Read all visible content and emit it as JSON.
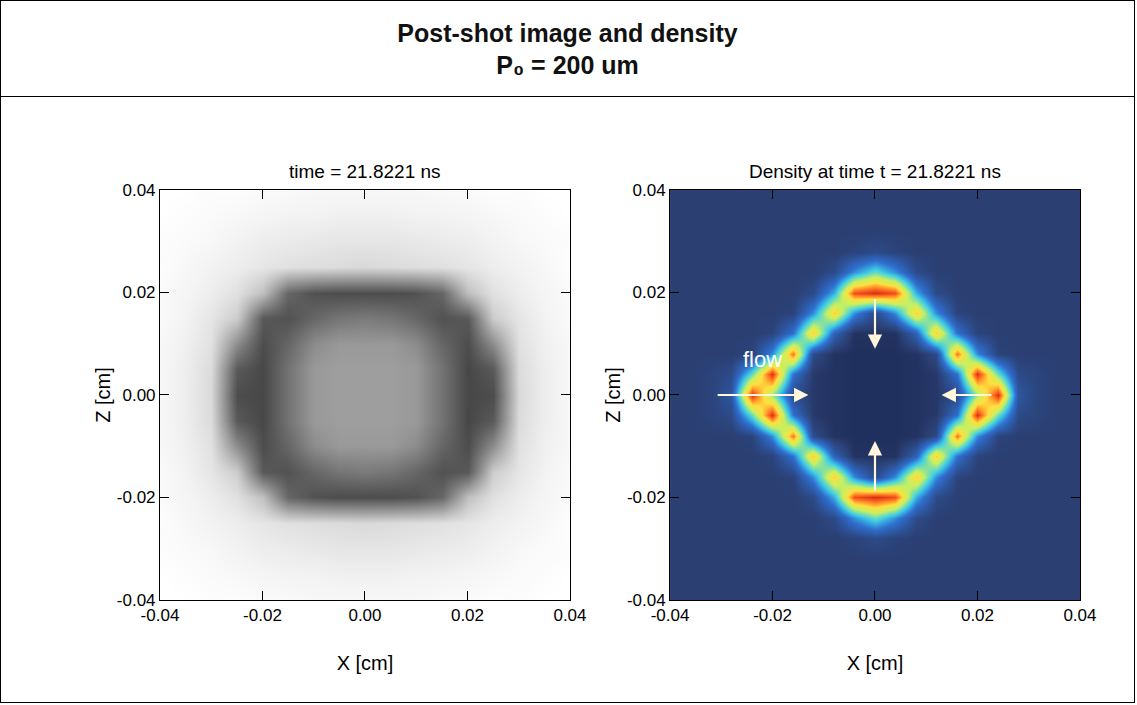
{
  "title": [
    "Post-shot image and density",
    "P₀ = 200 um"
  ],
  "chart_data": [
    {
      "type": "heatmap",
      "title": "time = 21.8221 ns",
      "x_label": "X [cm]",
      "y_label": "Z [cm]",
      "color": "gray",
      "grid": false,
      "zlim": [
        0,
        1
      ],
      "xlim": [
        -0.04,
        0.04
      ],
      "ylim": [
        -0.04,
        0.04
      ],
      "xticks": [
        -0.04,
        -0.02,
        {
          "value": 0,
          "label": "0.00"
        },
        0.02,
        0.04
      ],
      "yticks": [
        -0.04,
        -0.02,
        {
          "value": 0,
          "label": "0.00"
        },
        0.02,
        0.04
      ],
      "x": [
        -0.04,
        -0.035,
        -0.03,
        -0.025,
        -0.02,
        -0.015,
        -0.01,
        -0.005,
        0,
        0.005,
        0.01,
        0.015,
        0.02,
        0.025,
        0.03,
        0.035,
        0.04
      ],
      "y": [
        -0.04,
        -0.035,
        -0.03,
        -0.025,
        -0.02,
        -0.015,
        -0.01,
        -0.005,
        0,
        0.005,
        0.01,
        0.015,
        0.02,
        0.025,
        0.03,
        0.035,
        0.04
      ],
      "z": [
        [
          1,
          1,
          0.99,
          0.99,
          0.98,
          0.98,
          0.97,
          0.97,
          0.97,
          0.97,
          0.97,
          0.98,
          0.98,
          0.99,
          0.99,
          1,
          1
        ],
        [
          1,
          0.99,
          0.98,
          0.97,
          0.96,
          0.95,
          0.95,
          0.94,
          0.94,
          0.94,
          0.95,
          0.95,
          0.96,
          0.97,
          0.98,
          0.99,
          1
        ],
        [
          0.99,
          0.98,
          0.97,
          0.95,
          0.93,
          0.92,
          0.91,
          0.9,
          0.9,
          0.9,
          0.91,
          0.92,
          0.93,
          0.95,
          0.97,
          0.98,
          0.99
        ],
        [
          0.99,
          0.97,
          0.95,
          0.93,
          0.9,
          0.88,
          0.87,
          0.86,
          0.85,
          0.86,
          0.87,
          0.88,
          0.9,
          0.93,
          0.95,
          0.97,
          0.99
        ],
        [
          0.98,
          0.96,
          0.93,
          0.88,
          0.75,
          0.4,
          0.32,
          0.3,
          0.3,
          0.3,
          0.32,
          0.4,
          0.75,
          0.88,
          0.93,
          0.96,
          0.98
        ],
        [
          0.98,
          0.95,
          0.9,
          0.8,
          0.35,
          0.32,
          0.4,
          0.46,
          0.48,
          0.46,
          0.4,
          0.32,
          0.35,
          0.8,
          0.9,
          0.95,
          0.98
        ],
        [
          0.97,
          0.94,
          0.88,
          0.55,
          0.3,
          0.4,
          0.55,
          0.6,
          0.6,
          0.6,
          0.55,
          0.4,
          0.3,
          0.55,
          0.88,
          0.94,
          0.97
        ],
        [
          0.97,
          0.93,
          0.86,
          0.35,
          0.28,
          0.45,
          0.6,
          0.62,
          0.62,
          0.62,
          0.6,
          0.45,
          0.28,
          0.35,
          0.86,
          0.93,
          0.97
        ],
        [
          0.97,
          0.93,
          0.85,
          0.3,
          0.28,
          0.45,
          0.6,
          0.62,
          0.62,
          0.62,
          0.6,
          0.45,
          0.28,
          0.3,
          0.85,
          0.93,
          0.97
        ],
        [
          0.97,
          0.93,
          0.86,
          0.35,
          0.28,
          0.45,
          0.6,
          0.62,
          0.62,
          0.62,
          0.6,
          0.45,
          0.28,
          0.35,
          0.86,
          0.93,
          0.97
        ],
        [
          0.97,
          0.94,
          0.88,
          0.55,
          0.3,
          0.4,
          0.55,
          0.6,
          0.6,
          0.6,
          0.55,
          0.4,
          0.3,
          0.55,
          0.88,
          0.94,
          0.97
        ],
        [
          0.98,
          0.95,
          0.9,
          0.8,
          0.35,
          0.32,
          0.4,
          0.46,
          0.48,
          0.46,
          0.4,
          0.32,
          0.35,
          0.8,
          0.9,
          0.95,
          0.98
        ],
        [
          0.98,
          0.96,
          0.93,
          0.88,
          0.75,
          0.4,
          0.32,
          0.3,
          0.3,
          0.3,
          0.32,
          0.4,
          0.75,
          0.88,
          0.93,
          0.96,
          0.98
        ],
        [
          0.99,
          0.97,
          0.95,
          0.93,
          0.9,
          0.88,
          0.87,
          0.86,
          0.85,
          0.86,
          0.87,
          0.88,
          0.9,
          0.93,
          0.95,
          0.97,
          0.99
        ],
        [
          0.99,
          0.98,
          0.97,
          0.95,
          0.93,
          0.92,
          0.91,
          0.9,
          0.9,
          0.9,
          0.91,
          0.92,
          0.93,
          0.95,
          0.97,
          0.98,
          0.99
        ],
        [
          1,
          0.99,
          0.98,
          0.97,
          0.96,
          0.95,
          0.95,
          0.94,
          0.94,
          0.94,
          0.95,
          0.95,
          0.96,
          0.97,
          0.98,
          0.99,
          1
        ],
        [
          1,
          1,
          0.99,
          0.99,
          0.98,
          0.98,
          0.97,
          0.97,
          0.97,
          0.97,
          0.97,
          0.98,
          0.98,
          0.99,
          0.99,
          1,
          1
        ]
      ]
    },
    {
      "type": "heatmap",
      "title": "Density at time t = 21.8221 ns",
      "x_label": "X [cm]",
      "y_label": "Z [cm]",
      "color": "jet",
      "grid": false,
      "zlim": [
        0,
        1
      ],
      "annotations": [
        "flow"
      ],
      "xlim": [
        -0.04,
        0.04
      ],
      "ylim": [
        -0.04,
        0.04
      ],
      "xticks": [
        -0.04,
        -0.02,
        {
          "value": 0,
          "label": "0.00"
        },
        0.02,
        0.04
      ],
      "yticks": [
        -0.04,
        -0.02,
        {
          "value": 0,
          "label": "0.00"
        },
        0.02,
        0.04
      ],
      "x": [
        -0.04,
        -0.036,
        -0.032,
        -0.028,
        -0.024,
        -0.02,
        -0.016,
        -0.012,
        -0.008,
        -0.004,
        0,
        0.004,
        0.008,
        0.012,
        0.016,
        0.02,
        0.024,
        0.028,
        0.032,
        0.036,
        0.04
      ],
      "y": [
        -0.04,
        -0.036,
        -0.032,
        -0.028,
        -0.024,
        -0.02,
        -0.016,
        -0.012,
        -0.008,
        -0.004,
        0,
        0.004,
        0.008,
        0.012,
        0.016,
        0.02,
        0.024,
        0.028,
        0.032,
        0.036,
        0.04
      ],
      "z": [
        [
          0.1,
          0.1,
          0.1,
          0.1,
          0.1,
          0.1,
          0.1,
          0.1,
          0.1,
          0.1,
          0.1,
          0.1,
          0.1,
          0.1,
          0.1,
          0.1,
          0.1,
          0.1,
          0.1,
          0.1,
          0.1
        ],
        [
          0.1,
          0.1,
          0.1,
          0.1,
          0.1,
          0.1,
          0.1,
          0.1,
          0.1,
          0.1,
          0.1,
          0.1,
          0.1,
          0.1,
          0.1,
          0.1,
          0.1,
          0.1,
          0.1,
          0.1,
          0.1
        ],
        [
          0.1,
          0.1,
          0.1,
          0.1,
          0.1,
          0.1,
          0.1,
          0.1,
          0.1,
          0.1,
          0.1,
          0.1,
          0.1,
          0.1,
          0.1,
          0.1,
          0.1,
          0.1,
          0.1,
          0.1,
          0.1
        ],
        [
          0.1,
          0.1,
          0.1,
          0.1,
          0.1,
          0.1,
          0.1,
          0.1,
          0.1,
          0.12,
          0.15,
          0.12,
          0.1,
          0.1,
          0.1,
          0.1,
          0.1,
          0.1,
          0.1,
          0.1,
          0.1
        ],
        [
          0.1,
          0.1,
          0.1,
          0.1,
          0.1,
          0.1,
          0.1,
          0.1,
          0.15,
          0.35,
          0.5,
          0.35,
          0.15,
          0.1,
          0.1,
          0.1,
          0.1,
          0.1,
          0.1,
          0.1,
          0.1
        ],
        [
          0.1,
          0.1,
          0.1,
          0.1,
          0.1,
          0.1,
          0.1,
          0.15,
          0.4,
          0.9,
          0.95,
          0.9,
          0.4,
          0.15,
          0.1,
          0.1,
          0.1,
          0.1,
          0.1,
          0.1,
          0.1
        ],
        [
          0.1,
          0.1,
          0.1,
          0.1,
          0.1,
          0.1,
          0.12,
          0.35,
          0.75,
          0.35,
          0.15,
          0.35,
          0.75,
          0.35,
          0.12,
          0.1,
          0.1,
          0.1,
          0.1,
          0.1,
          0.1
        ],
        [
          0.1,
          0.1,
          0.1,
          0.1,
          0.1,
          0.12,
          0.3,
          0.75,
          0.25,
          0.06,
          0.06,
          0.06,
          0.25,
          0.75,
          0.3,
          0.12,
          0.1,
          0.1,
          0.1,
          0.1,
          0.1
        ],
        [
          0.1,
          0.1,
          0.1,
          0.1,
          0.12,
          0.35,
          0.85,
          0.15,
          0.06,
          0.05,
          0.05,
          0.05,
          0.06,
          0.15,
          0.85,
          0.35,
          0.12,
          0.1,
          0.1,
          0.1,
          0.1
        ],
        [
          0.1,
          0.1,
          0.12,
          0.15,
          0.5,
          0.95,
          0.3,
          0.08,
          0.06,
          0.05,
          0.05,
          0.05,
          0.06,
          0.08,
          0.3,
          0.95,
          0.5,
          0.15,
          0.12,
          0.1,
          0.1
        ],
        [
          0.1,
          0.1,
          0.12,
          0.2,
          0.95,
          0.55,
          0.15,
          0.08,
          0.06,
          0.05,
          0.05,
          0.05,
          0.06,
          0.08,
          0.15,
          0.55,
          0.95,
          0.2,
          0.12,
          0.1,
          0.1
        ],
        [
          0.1,
          0.1,
          0.12,
          0.15,
          0.5,
          0.95,
          0.3,
          0.08,
          0.06,
          0.05,
          0.05,
          0.05,
          0.06,
          0.08,
          0.3,
          0.95,
          0.5,
          0.15,
          0.12,
          0.1,
          0.1
        ],
        [
          0.1,
          0.1,
          0.1,
          0.1,
          0.12,
          0.35,
          0.85,
          0.15,
          0.06,
          0.05,
          0.05,
          0.05,
          0.06,
          0.15,
          0.85,
          0.35,
          0.12,
          0.1,
          0.1,
          0.1,
          0.1
        ],
        [
          0.1,
          0.1,
          0.1,
          0.1,
          0.1,
          0.12,
          0.3,
          0.75,
          0.25,
          0.06,
          0.06,
          0.06,
          0.25,
          0.75,
          0.3,
          0.12,
          0.1,
          0.1,
          0.1,
          0.1,
          0.1
        ],
        [
          0.1,
          0.1,
          0.1,
          0.1,
          0.1,
          0.1,
          0.12,
          0.35,
          0.75,
          0.35,
          0.15,
          0.35,
          0.75,
          0.35,
          0.12,
          0.1,
          0.1,
          0.1,
          0.1,
          0.1,
          0.1
        ],
        [
          0.1,
          0.1,
          0.1,
          0.1,
          0.1,
          0.1,
          0.1,
          0.15,
          0.4,
          0.9,
          0.95,
          0.9,
          0.4,
          0.15,
          0.1,
          0.1,
          0.1,
          0.1,
          0.1,
          0.1,
          0.1
        ],
        [
          0.1,
          0.1,
          0.1,
          0.1,
          0.1,
          0.1,
          0.1,
          0.1,
          0.15,
          0.35,
          0.5,
          0.35,
          0.15,
          0.1,
          0.1,
          0.1,
          0.1,
          0.1,
          0.1,
          0.1,
          0.1
        ],
        [
          0.1,
          0.1,
          0.1,
          0.1,
          0.1,
          0.1,
          0.1,
          0.1,
          0.1,
          0.12,
          0.15,
          0.12,
          0.1,
          0.1,
          0.1,
          0.1,
          0.1,
          0.1,
          0.1,
          0.1,
          0.1
        ],
        [
          0.1,
          0.1,
          0.1,
          0.1,
          0.1,
          0.1,
          0.1,
          0.1,
          0.1,
          0.1,
          0.1,
          0.1,
          0.1,
          0.1,
          0.1,
          0.1,
          0.1,
          0.1,
          0.1,
          0.1,
          0.1
        ],
        [
          0.1,
          0.1,
          0.1,
          0.1,
          0.1,
          0.1,
          0.1,
          0.1,
          0.1,
          0.1,
          0.1,
          0.1,
          0.1,
          0.1,
          0.1,
          0.1,
          0.1,
          0.1,
          0.1,
          0.1,
          0.1
        ],
        [
          0.1,
          0.1,
          0.1,
          0.1,
          0.1,
          0.1,
          0.1,
          0.1,
          0.1,
          0.1,
          0.1,
          0.1,
          0.1,
          0.1,
          0.1,
          0.1,
          0.1,
          0.1,
          0.1,
          0.1,
          0.1
        ]
      ]
    }
  ]
}
